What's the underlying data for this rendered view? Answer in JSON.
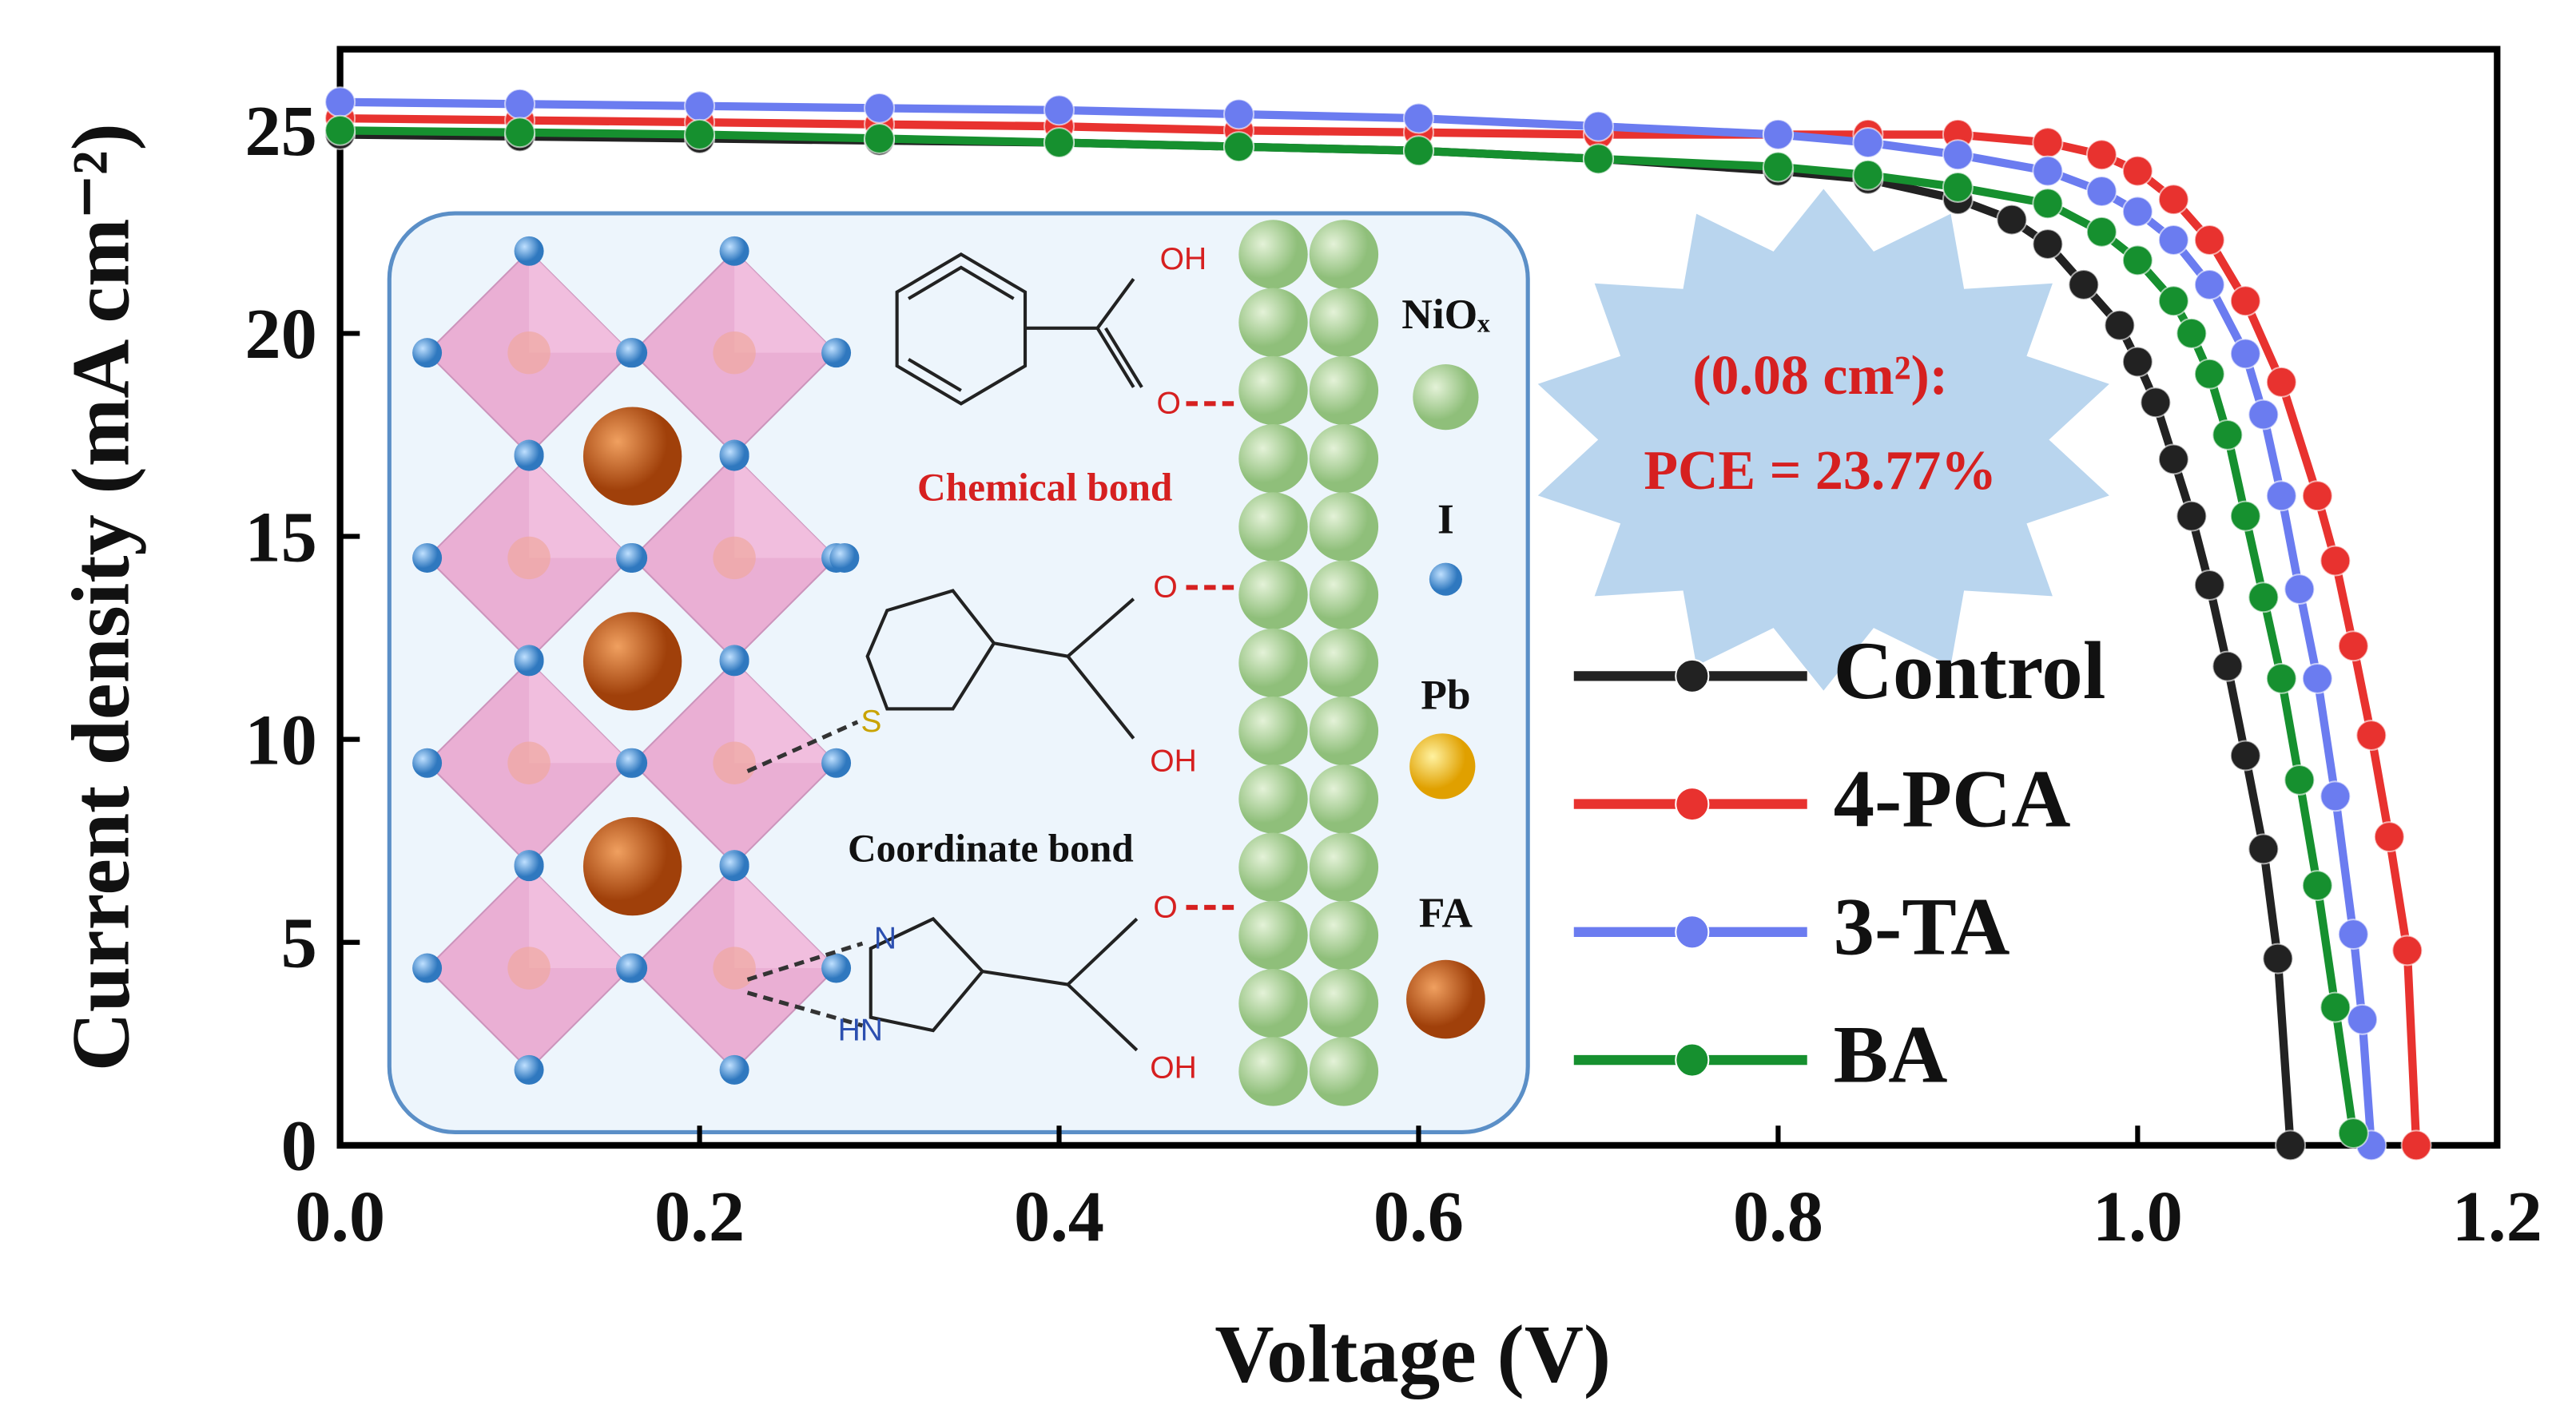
{
  "chart_data": {
    "type": "line",
    "xlabel": "Voltage (V)",
    "ylabel": "Current density (mA cm⁻²)",
    "xlim": [
      0,
      1.2
    ],
    "ylim": [
      0,
      27
    ],
    "xticks": [
      {
        "value": 0,
        "label": "0.0"
      },
      {
        "value": 0.2,
        "label": "0.2"
      },
      {
        "value": 0.4,
        "label": "0.4"
      },
      {
        "value": 0.6,
        "label": "0.6"
      },
      {
        "value": 0.8,
        "label": "0.8"
      },
      {
        "value": 1.0,
        "label": "1.0"
      },
      {
        "value": 1.2,
        "label": "1.2"
      }
    ],
    "yticks": [
      0,
      5,
      10,
      15,
      20,
      25
    ],
    "legend": "lower right",
    "series": [
      {
        "name": "Control",
        "color": "#222222",
        "x": [
          0,
          0.1,
          0.2,
          0.3,
          0.4,
          0.5,
          0.6,
          0.7,
          0.8,
          0.85,
          0.9,
          0.93,
          0.95,
          0.97,
          0.99,
          1.0,
          1.01,
          1.02,
          1.03,
          1.04,
          1.05,
          1.06,
          1.07,
          1.078,
          1.085
        ],
        "values": [
          24.9,
          24.85,
          24.8,
          24.75,
          24.7,
          24.6,
          24.5,
          24.3,
          24.0,
          23.8,
          23.3,
          22.8,
          22.2,
          21.2,
          20.2,
          19.3,
          18.3,
          16.9,
          15.5,
          13.8,
          11.8,
          9.6,
          7.3,
          4.6,
          0.0
        ]
      },
      {
        "name": "4-PCA",
        "color": "#e8322f",
        "x": [
          0,
          0.1,
          0.2,
          0.3,
          0.4,
          0.5,
          0.6,
          0.7,
          0.8,
          0.85,
          0.9,
          0.95,
          0.98,
          1.0,
          1.02,
          1.04,
          1.06,
          1.08,
          1.1,
          1.11,
          1.12,
          1.13,
          1.14,
          1.15,
          1.155
        ],
        "values": [
          25.3,
          25.25,
          25.2,
          25.15,
          25.1,
          25.0,
          24.95,
          24.9,
          24.9,
          24.9,
          24.9,
          24.7,
          24.4,
          24.0,
          23.3,
          22.3,
          20.8,
          18.8,
          16.0,
          14.4,
          12.3,
          10.1,
          7.6,
          4.8,
          0.0
        ]
      },
      {
        "name": "3-TA",
        "color": "#6b7cf0",
        "x": [
          0,
          0.1,
          0.2,
          0.3,
          0.4,
          0.5,
          0.6,
          0.7,
          0.8,
          0.85,
          0.9,
          0.95,
          0.98,
          1.0,
          1.02,
          1.04,
          1.06,
          1.07,
          1.08,
          1.09,
          1.1,
          1.11,
          1.12,
          1.125,
          1.13
        ],
        "values": [
          25.7,
          25.65,
          25.6,
          25.55,
          25.5,
          25.4,
          25.3,
          25.1,
          24.9,
          24.7,
          24.4,
          24.0,
          23.5,
          23.0,
          22.3,
          21.2,
          19.5,
          18.0,
          16.0,
          13.7,
          11.5,
          8.6,
          5.2,
          3.1,
          0.0
        ]
      },
      {
        "name": "BA",
        "color": "#16902f",
        "x": [
          0,
          0.1,
          0.2,
          0.3,
          0.4,
          0.5,
          0.6,
          0.7,
          0.8,
          0.85,
          0.9,
          0.95,
          0.98,
          1.0,
          1.02,
          1.03,
          1.04,
          1.05,
          1.06,
          1.07,
          1.08,
          1.09,
          1.1,
          1.11,
          1.12
        ],
        "values": [
          25.0,
          24.95,
          24.9,
          24.8,
          24.7,
          24.6,
          24.5,
          24.3,
          24.1,
          23.9,
          23.6,
          23.2,
          22.5,
          21.8,
          20.8,
          20.0,
          19.0,
          17.5,
          15.5,
          13.5,
          11.5,
          9.0,
          6.4,
          3.4,
          0.3
        ]
      }
    ],
    "annotations": [
      "(0.08 cm²):",
      "PCE = 23.77%"
    ],
    "inset": {
      "nio": "NiOₓ",
      "iodide": "I",
      "lead": "Pb",
      "fa": "FA",
      "chemical_bond": "Chemical bond",
      "coordinate_bond": "Coordinate bond",
      "oh_1": "OH",
      "o_1": "O",
      "o_2": "O",
      "oh_2": "OH",
      "s": "S",
      "o_3": "O",
      "n": "N",
      "hn": "HN",
      "oh_3": "OH"
    }
  }
}
